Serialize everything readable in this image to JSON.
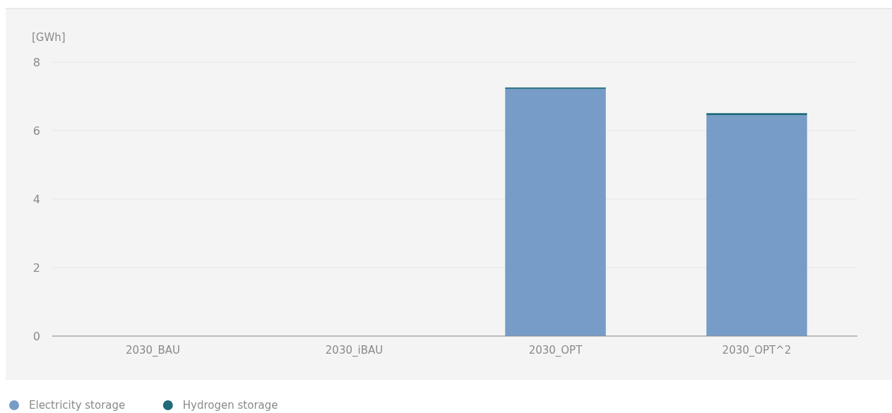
{
  "chart_data": {
    "type": "bar",
    "ylabel": "[GWh]",
    "categories": [
      "2030_BAU",
      "2030_iBAU",
      "2030_OPT",
      "2030_OPT^2"
    ],
    "stacked": true,
    "series": [
      {
        "name": "Electricity storage",
        "color": "#779cc8",
        "values": [
          0,
          0,
          7.22,
          6.45
        ]
      },
      {
        "name": "Hydrogen storage",
        "color": "#1e6b7a",
        "values": [
          0,
          0,
          0.04,
          0.06
        ]
      }
    ],
    "ylim": [
      0,
      8
    ],
    "yticks": [
      0,
      2,
      4,
      6,
      8
    ],
    "grid": "y",
    "legend": "bottom left"
  }
}
